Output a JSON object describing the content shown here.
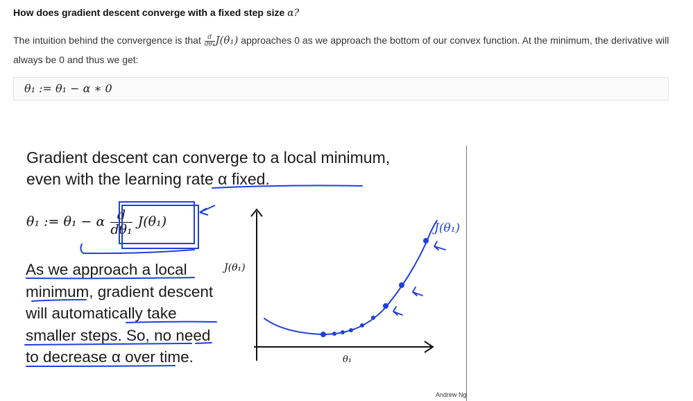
{
  "heading": {
    "text": "How does gradient descent converge with a fixed step size",
    "symbol": "α?"
  },
  "paragraph": {
    "part1": "The intuition behind the convergence is that",
    "frac_num": "d",
    "frac_den": "dθ₁",
    "func": "J(θ₁)",
    "part2": "approaches 0 as we approach the bottom of our convex function. At the minimum, the derivative will always be 0 and thus we get:"
  },
  "equation": "θ₁ := θ₁ − α ∗ 0",
  "slide": {
    "title": "Gradient descent can converge to a local minimum, even with the learning rate α fixed.",
    "formula": {
      "lhs": "θ₁ := θ₁ − α",
      "num": "d",
      "den": "dθ₁",
      "rhs": "J(θ₁)"
    },
    "description": "As we approach a local minimum, gradient descent will automatically take smaller steps. So, no need to decrease α over time.",
    "y_axis_label": "J(θ₁)",
    "x_axis_label": "θ₁",
    "handwritten_label": "J(θ₁)",
    "credit": "Andrew Ng"
  },
  "colors": {
    "ink": "#1f3fe0",
    "text": "#1a1a1a"
  }
}
